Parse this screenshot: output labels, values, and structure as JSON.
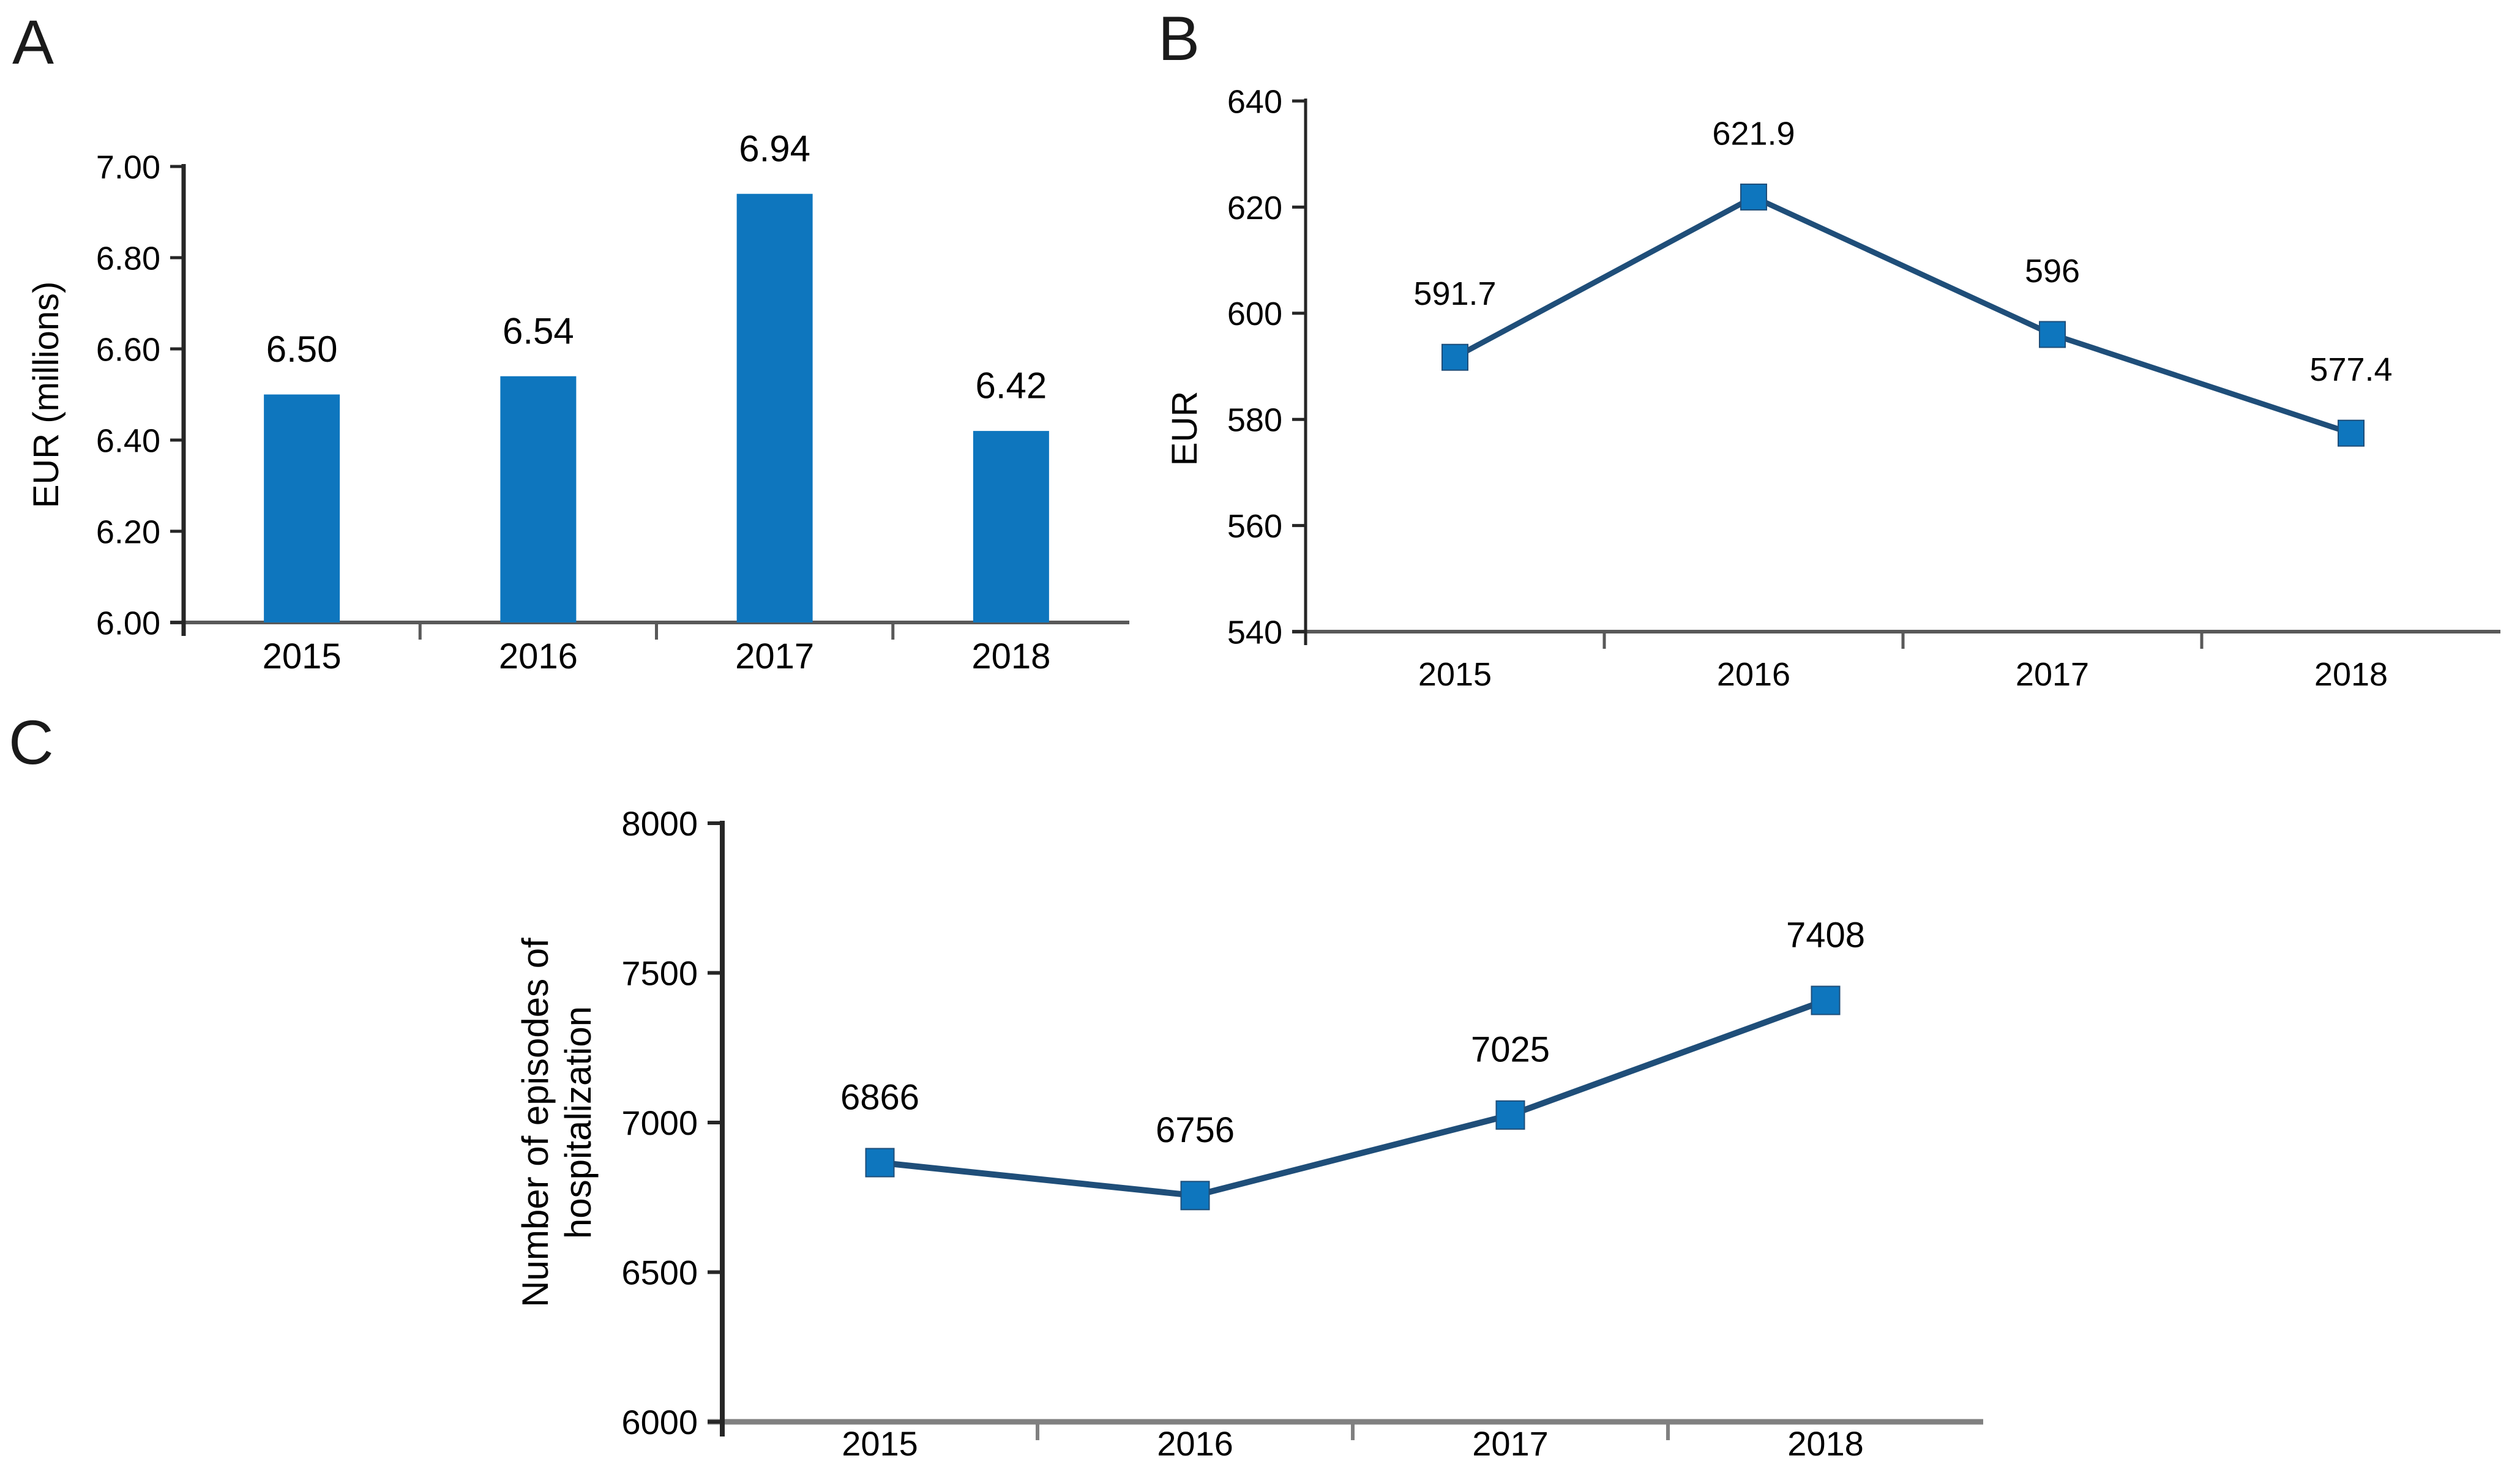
{
  "page": {
    "background": "#ffffff"
  },
  "panels": [
    {
      "letter": "A"
    },
    {
      "letter": "B"
    },
    {
      "letter": "C"
    }
  ],
  "palette": {
    "bar_fill": "#0e76be",
    "marker_fill": "#0e76be",
    "line_stroke": "#1f4e79",
    "y_axis": "#262626",
    "x_axis_ab": "#595959",
    "x_axis_c": "#808080",
    "text": "#000000"
  },
  "chart_data": [
    {
      "panel": "A",
      "type": "bar",
      "categories": [
        "2015",
        "2016",
        "2017",
        "2018"
      ],
      "values": [
        6.5,
        6.54,
        6.94,
        6.42
      ],
      "data_labels": [
        "6.50",
        "6.54",
        "6.94",
        "6.42"
      ],
      "ylabel_lines": [
        "EUR (millions)"
      ],
      "ylim": [
        6.0,
        7.0
      ],
      "ystep": 0.2,
      "ytick_labels": [
        "6.00",
        "6.20",
        "6.40",
        "6.60",
        "6.80",
        "7.00"
      ],
      "grid": false,
      "legend": false
    },
    {
      "panel": "B",
      "type": "line",
      "categories": [
        "2015",
        "2016",
        "2017",
        "2018"
      ],
      "values": [
        591.7,
        621.9,
        596,
        577.4
      ],
      "data_labels": [
        "591.7",
        "621.9",
        "596",
        "577.4"
      ],
      "ylabel_lines": [
        "EUR"
      ],
      "ylim": [
        540,
        640
      ],
      "ystep": 20,
      "ytick_labels": [
        "540",
        "560",
        "580",
        "600",
        "620",
        "640"
      ],
      "grid": false,
      "legend": false
    },
    {
      "panel": "C",
      "type": "line",
      "categories": [
        "2015",
        "2016",
        "2017",
        "2018"
      ],
      "values": [
        6866,
        6756,
        7025,
        7408
      ],
      "data_labels": [
        "6866",
        "6756",
        "7025",
        "7408"
      ],
      "ylabel_lines": [
        "Number of episodes of",
        "hospitalization"
      ],
      "ylim": [
        6000,
        8000
      ],
      "ystep": 500,
      "ytick_labels": [
        "6000",
        "6500",
        "7000",
        "7500",
        "8000"
      ],
      "grid": false,
      "legend": false
    }
  ]
}
